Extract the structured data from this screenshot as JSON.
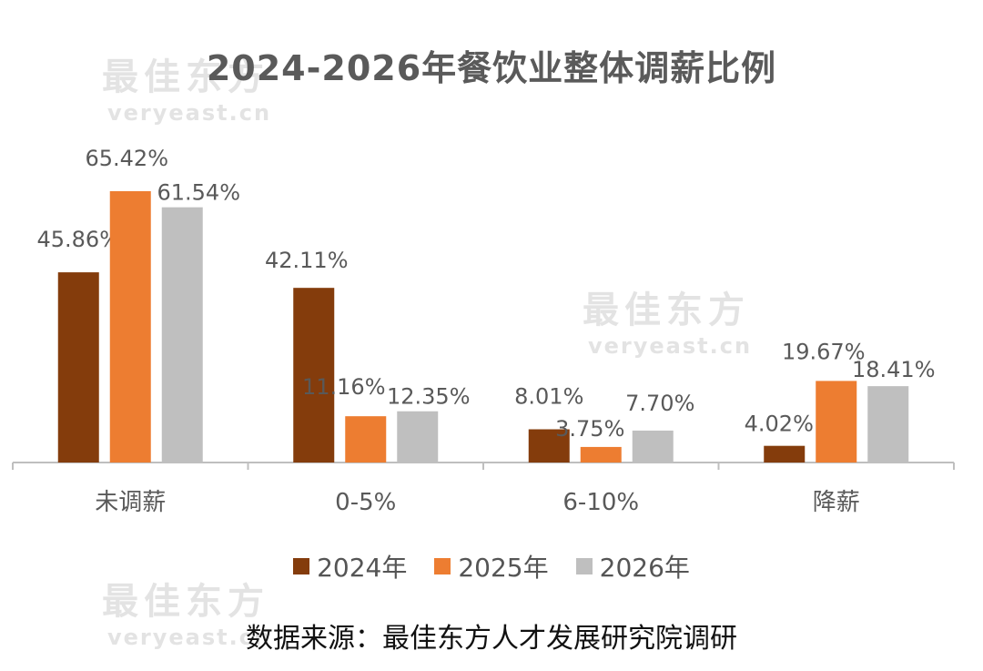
{
  "watermark": {
    "main": "最佳东方",
    "sub": "veryeast.cn"
  },
  "chart_data": {
    "type": "bar",
    "title": "2024-2026年餐饮业整体调薪比例",
    "categories": [
      "未调薪",
      "0-5%",
      "6-10%",
      "降薪"
    ],
    "series": [
      {
        "name": "2024年",
        "color": "#843c0c",
        "values": [
          45.86,
          42.11,
          8.01,
          4.02
        ],
        "labels": [
          "45.86%",
          "42.11%",
          "8.01%",
          "4.02%"
        ]
      },
      {
        "name": "2025年",
        "color": "#ed7d31",
        "values": [
          65.42,
          11.16,
          3.75,
          19.67
        ],
        "labels": [
          "65.42%",
          "11.16%",
          "3.75%",
          "19.67%"
        ]
      },
      {
        "name": "2026年",
        "color": "#bfbfbf",
        "values": [
          61.54,
          12.35,
          7.7,
          18.41
        ],
        "labels": [
          "61.54%",
          "12.35%",
          "7.70%",
          "18.41%"
        ]
      }
    ],
    "ylim": [
      0,
      70
    ],
    "grid": false,
    "legend": "bottom",
    "source": "数据来源：最佳东方人才发展研究院调研"
  }
}
